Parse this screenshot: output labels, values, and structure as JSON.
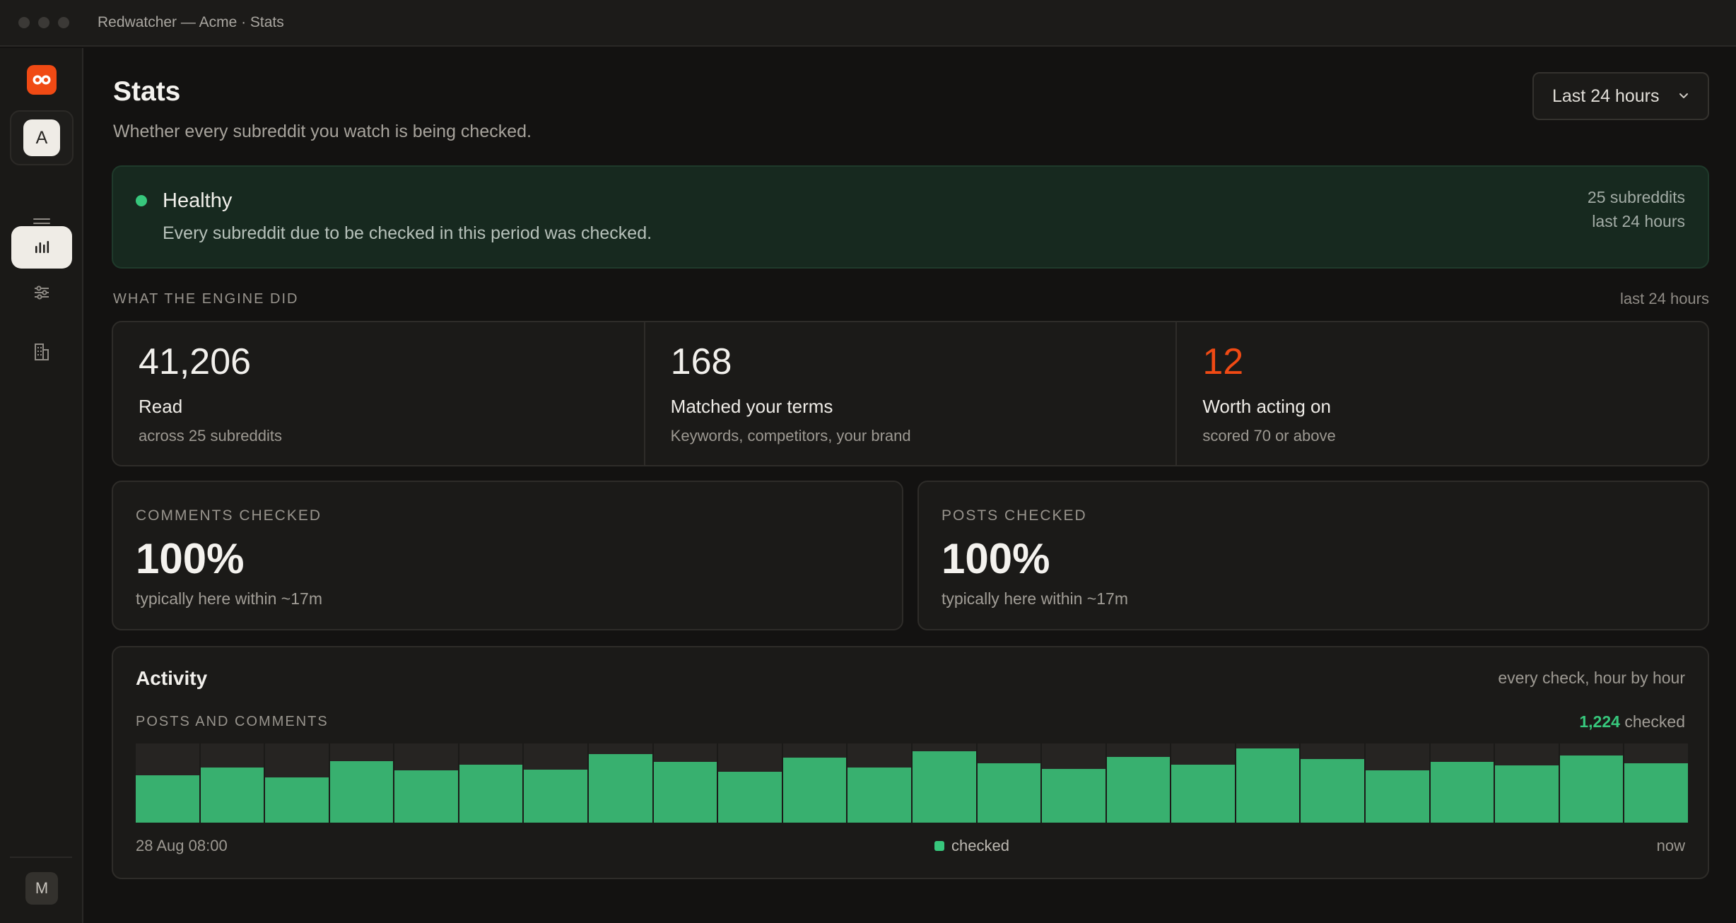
{
  "window": {
    "title": "Redwatcher — Acme · Stats"
  },
  "sidebar": {
    "workspace_initial": "A",
    "user_initial": "M",
    "items": [
      {
        "name": "feed",
        "icon": "list-icon",
        "active": false
      },
      {
        "name": "stats",
        "icon": "bar-chart-icon",
        "active": true
      },
      {
        "name": "settings",
        "icon": "sliders-icon",
        "active": false
      },
      {
        "name": "organization",
        "icon": "building-icon",
        "active": false
      }
    ]
  },
  "header": {
    "title": "Stats",
    "subtitle": "Whether every subreddit you watch is being checked.",
    "range": "Last 24 hours"
  },
  "health": {
    "status": "Healthy",
    "description": "Every subreddit due to be checked in this period was checked.",
    "subreddits": "25 subreddits",
    "period": "last 24 hours",
    "color": "#37c77c"
  },
  "engine": {
    "label": "WHAT THE ENGINE DID",
    "period": "last 24 hours",
    "read": {
      "value": "41,206",
      "label": "Read",
      "sub": "across 25 subreddits"
    },
    "matched": {
      "value": "168",
      "label": "Matched your terms",
      "sub": "Keywords, competitors, your brand"
    },
    "worth": {
      "value": "12",
      "label": "Worth acting on",
      "sub": "scored 70 or above",
      "color": "#f04a14"
    }
  },
  "comments": {
    "label": "COMMENTS CHECKED",
    "value": "100%",
    "sub": "typically here within ~17m"
  },
  "posts": {
    "label": "POSTS CHECKED",
    "value": "100%",
    "sub": "typically here within ~17m"
  },
  "activity": {
    "title": "Activity",
    "meta": "every check, hour by hour",
    "series_label": "POSTS AND COMMENTS",
    "total": "1,224",
    "total_suffix": "checked",
    "start_label": "28 Aug 08:00",
    "end_label": "now",
    "legend": "checked"
  },
  "chart_data": {
    "type": "bar",
    "series": [
      {
        "name": "checked",
        "values": [
          0.6,
          0.7,
          0.57,
          0.78,
          0.66,
          0.73,
          0.67,
          0.87,
          0.77,
          0.64,
          0.82,
          0.7,
          0.9,
          0.75,
          0.68,
          0.83,
          0.73,
          0.94,
          0.8,
          0.66,
          0.77,
          0.72,
          0.85,
          0.75
        ]
      }
    ],
    "xlabel_start": "28 Aug 08:00",
    "xlabel_end": "now",
    "color": "#38b06f"
  }
}
